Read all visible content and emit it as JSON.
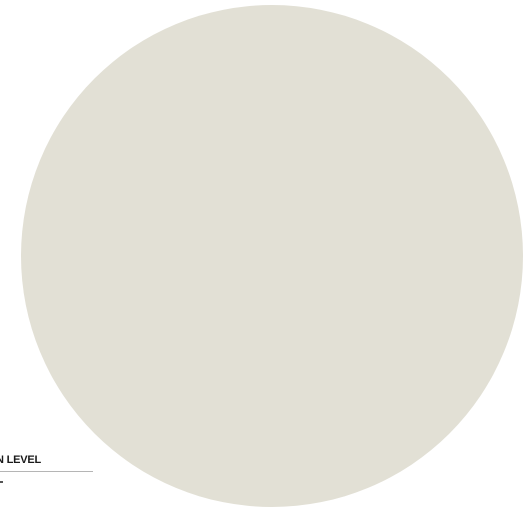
{
  "swatch": {
    "color": "#e2e0d5"
  },
  "label": {
    "text": "N LEVEL"
  }
}
